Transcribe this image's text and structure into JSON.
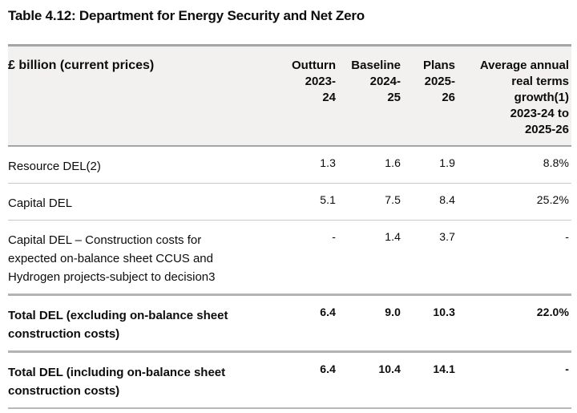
{
  "page_title": "Table 4.12: Department for Energy Security and Net Zero",
  "table": {
    "corner_label": "£ billion (current prices)",
    "column_headers": [
      "Outturn\n2023-\n24",
      "Baseline\n2024-\n25",
      "Plans\n2025-\n26",
      "Average annual\nreal terms\ngrowth(1)\n2023-24 to\n2025-26"
    ],
    "rows": [
      {
        "label": "Resource DEL(2)",
        "values": [
          "1.3",
          "1.6",
          "1.9",
          "8.8%"
        ],
        "total": false
      },
      {
        "label": "Capital DEL",
        "values": [
          "5.1",
          "7.5",
          "8.4",
          "25.2%"
        ],
        "total": false
      },
      {
        "label": "Capital DEL – Construction costs for expected on-balance sheet CCUS and Hydrogen projects-subject to decision3",
        "values": [
          "-",
          "1.4",
          "3.7",
          "-"
        ],
        "total": false
      },
      {
        "label": "Total DEL (excluding on-balance sheet construction costs)",
        "values": [
          "6.4",
          "9.0",
          "10.3",
          "22.0%"
        ],
        "total": true
      },
      {
        "label": "Total DEL (including on-balance sheet construction costs)",
        "values": [
          "6.4",
          "10.4",
          "14.1",
          "-"
        ],
        "total": true
      }
    ]
  },
  "colors": {
    "text": "#0b0c0c",
    "header_background": "#f2f1ef",
    "border_strong": "#a3a5a7",
    "border_total": "#b1b3b5",
    "border_light": "#c9c9c9",
    "page_background": "#ffffff"
  }
}
